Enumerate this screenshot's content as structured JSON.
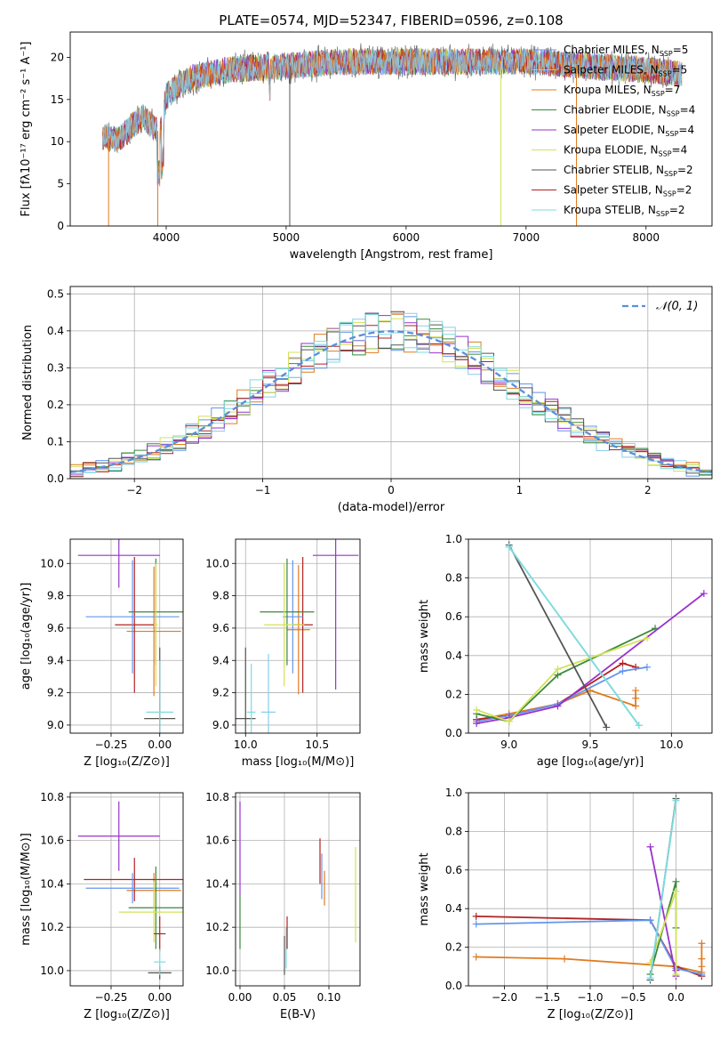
{
  "legend_entries": [
    {
      "label": "Chabrier MILES, N",
      "sub": "SSP",
      "suffix": "=5",
      "color": "#6495ed"
    },
    {
      "label": "Salpeter MILES, N",
      "sub": "SSP",
      "suffix": "=5",
      "color": "#87ceeb"
    },
    {
      "label": "Kroupa MILES, N",
      "sub": "SSP",
      "suffix": "=7",
      "color": "#e07b20"
    },
    {
      "label": "Chabrier ELODIE, N",
      "sub": "SSP",
      "suffix": "=4",
      "color": "#3a8a3a"
    },
    {
      "label": "Salpeter ELODIE, N",
      "sub": "SSP",
      "suffix": "=4",
      "color": "#9932cc"
    },
    {
      "label": "Kroupa ELODIE, N",
      "sub": "SSP",
      "suffix": "=4",
      "color": "#d4e157"
    },
    {
      "label": "Chabrier STELIB, N",
      "sub": "SSP",
      "suffix": "=2",
      "color": "#555555"
    },
    {
      "label": "Salpeter STELIB, N",
      "sub": "SSP",
      "suffix": "=2",
      "color": "#b22222"
    },
    {
      "label": "Kroupa STELIB, N",
      "sub": "SSP",
      "suffix": "=2",
      "color": "#7fdbdb"
    }
  ],
  "chart_data": [
    {
      "type": "line",
      "title": "PLATE=0574, MJD=52347, FIBERID=0596, z=0.108",
      "xlabel": "wavelength [Angstrom, rest frame]",
      "ylabel": "Flux [fλ10⁻¹⁷ erg cm⁻² s⁻¹ A⁻¹]",
      "xlim": [
        3200,
        8550
      ],
      "ylim": [
        0,
        23
      ],
      "xticks": [
        "4000",
        "5000",
        "6000",
        "7000",
        "8000"
      ],
      "yticks": [
        "0",
        "5",
        "10",
        "15",
        "20"
      ],
      "spectrum_envelope": {
        "x": [
          3470,
          3600,
          3800,
          3950,
          4000,
          4200,
          4500,
          5000,
          5500,
          6000,
          6500,
          7000,
          7500,
          8000,
          8300
        ],
        "y": [
          10.5,
          10.2,
          13,
          11,
          15.5,
          17.5,
          18.5,
          19,
          19.5,
          19.5,
          19.5,
          19.5,
          19,
          18.5,
          18
        ]
      },
      "drops": [
        3520,
        3930,
        5030,
        6790,
        7420
      ]
    },
    {
      "type": "bar",
      "xlabel": "(data-model)/error",
      "ylabel": "Normed distribution",
      "xlim": [
        -2.5,
        2.5
      ],
      "ylim": [
        0,
        0.52
      ],
      "xticks": [
        "−2",
        "−1",
        "0",
        "1",
        "2"
      ],
      "yticks": [
        "0.0",
        "0.1",
        "0.2",
        "0.3",
        "0.4",
        "0.5"
      ],
      "legend": "𝒩(0, 1)",
      "bin_width": 0.1
    },
    {
      "type": "scatter",
      "xlabel": "Z [log₁₀(Z/Z⊙)]",
      "ylabel": "age  [log₁₀(age/yr)]",
      "xlim": [
        -0.46,
        0.12
      ],
      "ylim": [
        8.95,
        10.15
      ],
      "xticks": [
        "−0.25",
        "0.00"
      ],
      "yticks": [
        "9.0",
        "9.2",
        "9.4",
        "9.6",
        "9.8",
        "10.0"
      ],
      "points": [
        {
          "x": -0.03,
          "y": 9.58,
          "xerr": 0.14,
          "yerr": 0.4,
          "c": 2
        },
        {
          "x": -0.13,
          "y": 9.62,
          "xerr": 0.1,
          "yerr": 0.42,
          "c": 7
        },
        {
          "x": -0.14,
          "y": 9.67,
          "xerr": 0.24,
          "yerr": 0.35,
          "c": 0
        },
        {
          "x": -0.02,
          "y": 9.7,
          "xerr": 0.14,
          "yerr": 0.33,
          "c": 3
        },
        {
          "x": -0.21,
          "y": 10.05,
          "xerr": 0.21,
          "yerr": 0.2,
          "c": 4
        },
        {
          "x": -0.02,
          "y": 9.62,
          "xerr": 0.01,
          "yerr": 0.38,
          "c": 5
        },
        {
          "x": 0.0,
          "y": 9.04,
          "xerr": 0.08,
          "yerr": 0.44,
          "c": 6
        },
        {
          "x": 0.0,
          "y": 9.08,
          "xerr": 0.07,
          "yerr": 0.32,
          "c": 8
        }
      ]
    },
    {
      "type": "scatter",
      "xlabel": "mass [log₁₀(M/M⊙)]",
      "xlim": [
        9.93,
        10.8
      ],
      "ylim": [
        8.95,
        10.15
      ],
      "xticks": [
        "10.0",
        "10.5"
      ],
      "yticks": [
        "9.0",
        "9.2",
        "9.4",
        "9.6",
        "9.8",
        "10.0"
      ],
      "points": [
        {
          "x": 10.37,
          "y": 9.59,
          "xerr": 0.08,
          "yerr": 0.4,
          "c": 2
        },
        {
          "x": 10.4,
          "y": 9.62,
          "xerr": 0.07,
          "yerr": 0.42,
          "c": 7
        },
        {
          "x": 10.33,
          "y": 9.67,
          "xerr": 0.07,
          "yerr": 0.35,
          "c": 0
        },
        {
          "x": 10.29,
          "y": 9.7,
          "xerr": 0.19,
          "yerr": 0.33,
          "c": 3
        },
        {
          "x": 10.63,
          "y": 10.05,
          "xerr": 0.16,
          "yerr": 0.83,
          "c": 4
        },
        {
          "x": 10.27,
          "y": 9.62,
          "xerr": 0.14,
          "yerr": 0.38,
          "c": 5
        },
        {
          "x": 10.0,
          "y": 9.04,
          "xerr": 0.07,
          "yerr": 0.44,
          "c": 6
        },
        {
          "x": 10.16,
          "y": 9.08,
          "xerr": 0.05,
          "yerr": 0.36,
          "c": 1
        },
        {
          "x": 10.04,
          "y": 9.08,
          "xerr": 0.03,
          "yerr": 0.3,
          "c": 8
        }
      ]
    },
    {
      "type": "line",
      "xlabel": "age  [log₁₀(age/yr)]",
      "ylabel": "mass weight",
      "xlim": [
        8.75,
        10.25
      ],
      "ylim": [
        0,
        1
      ],
      "xticks": [
        "9.0",
        "9.5",
        "10.0"
      ],
      "yticks": [
        "0.0",
        "0.2",
        "0.4",
        "0.6",
        "0.8",
        "1.0"
      ],
      "series": [
        {
          "c": 2,
          "x": [
            8.8,
            9.0,
            9.3,
            9.5,
            9.78,
            9.78,
            9.78
          ],
          "y": [
            0.07,
            0.1,
            0.15,
            0.22,
            0.14,
            0.22,
            0.18
          ]
        },
        {
          "c": 7,
          "x": [
            8.8,
            9.0,
            9.3,
            9.7,
            9.78
          ],
          "y": [
            0.07,
            0.09,
            0.15,
            0.36,
            0.34
          ]
        },
        {
          "c": 0,
          "x": [
            8.8,
            9.0,
            9.3,
            9.7,
            9.85
          ],
          "y": [
            0.06,
            0.09,
            0.15,
            0.32,
            0.34
          ]
        },
        {
          "c": 3,
          "x": [
            8.8,
            9.0,
            9.3,
            9.9
          ],
          "y": [
            0.1,
            0.06,
            0.3,
            0.54
          ]
        },
        {
          "c": 4,
          "x": [
            8.8,
            9.0,
            9.3,
            10.2
          ],
          "y": [
            0.05,
            0.08,
            0.14,
            0.72
          ]
        },
        {
          "c": 5,
          "x": [
            8.8,
            9.0,
            9.3,
            9.85
          ],
          "y": [
            0.12,
            0.06,
            0.33,
            0.49
          ]
        },
        {
          "c": 6,
          "x": [
            9.0,
            9.6
          ],
          "y": [
            0.97,
            0.03
          ]
        },
        {
          "c": 1,
          "x": [
            9.0,
            9.8
          ],
          "y": [
            0.96,
            0.04
          ]
        },
        {
          "c": 8,
          "x": [
            9.0,
            9.8
          ],
          "y": [
            0.96,
            0.04
          ]
        }
      ]
    },
    {
      "type": "scatter",
      "xlabel": "Z [log₁₀(Z/Z⊙)]",
      "ylabel": "mass [log₁₀(M/M⊙)]",
      "xlim": [
        -0.46,
        0.12
      ],
      "ylim": [
        9.93,
        10.82
      ],
      "xticks": [
        "−0.25",
        "0.00"
      ],
      "yticks": [
        "10.0",
        "10.2",
        "10.4",
        "10.6",
        "10.8"
      ],
      "points": [
        {
          "x": -0.03,
          "y": 10.37,
          "xerr": 0.14,
          "yerr": 0.08,
          "c": 2
        },
        {
          "x": -0.13,
          "y": 10.42,
          "xerr": 0.26,
          "yerr": 0.1,
          "c": 7
        },
        {
          "x": -0.14,
          "y": 10.38,
          "xerr": 0.24,
          "yerr": 0.07,
          "c": 0
        },
        {
          "x": -0.02,
          "y": 10.29,
          "xerr": 0.14,
          "yerr": 0.19,
          "c": 3
        },
        {
          "x": -0.21,
          "y": 10.62,
          "xerr": 0.21,
          "yerr": 0.16,
          "c": 4
        },
        {
          "x": -0.03,
          "y": 10.27,
          "xerr": 0.18,
          "yerr": 0.14,
          "c": 5
        },
        {
          "x": 0.0,
          "y": 9.99,
          "xerr": 0.06,
          "yerr": 0.03,
          "c": 6
        },
        {
          "x": 0.0,
          "y": 10.17,
          "xerr": 0.03,
          "yerr": 0.08,
          "c": 7
        },
        {
          "x": 0.0,
          "y": 10.04,
          "xerr": 0.03,
          "yerr": 0.06,
          "c": 8
        }
      ]
    },
    {
      "type": "scatter",
      "xlabel": "E(B-V)",
      "xlim": [
        -0.005,
        0.135
      ],
      "ylim": [
        9.93,
        10.82
      ],
      "xticks": [
        "0.00",
        "0.05",
        "0.10"
      ],
      "yticks": [
        "10.0",
        "10.2",
        "10.4",
        "10.6",
        "10.8"
      ],
      "vbars": [
        {
          "x": 0.0,
          "y0": 10.35,
          "y1": 10.78,
          "c": 4
        },
        {
          "x": 0.0,
          "y0": 10.1,
          "y1": 10.35,
          "c": 3
        },
        {
          "x": 0.05,
          "y0": 9.98,
          "y1": 10.16,
          "c": 6
        },
        {
          "x": 0.052,
          "y0": 10.01,
          "y1": 10.2,
          "c": 8
        },
        {
          "x": 0.053,
          "y0": 10.1,
          "y1": 10.25,
          "c": 7
        },
        {
          "x": 0.09,
          "y0": 10.4,
          "y1": 10.61,
          "c": 7
        },
        {
          "x": 0.092,
          "y0": 10.33,
          "y1": 10.54,
          "c": 0
        },
        {
          "x": 0.095,
          "y0": 10.3,
          "y1": 10.46,
          "c": 2
        },
        {
          "x": 0.13,
          "y0": 10.13,
          "y1": 10.57,
          "c": 5
        }
      ]
    },
    {
      "type": "line",
      "xlabel": "Z [log₁₀(Z/Z⊙)]",
      "ylabel": "mass weight",
      "xlim": [
        -2.42,
        0.42
      ],
      "ylim": [
        0,
        1
      ],
      "xticks": [
        "−2.0",
        "−1.5",
        "−1.0",
        "−0.5",
        "0.0"
      ],
      "yticks": [
        "0.0",
        "0.2",
        "0.4",
        "0.6",
        "0.8",
        "1.0"
      ],
      "series": [
        {
          "c": 2,
          "x": [
            -2.33,
            -1.3,
            0.0,
            0.3,
            0.3,
            0.3,
            0.3
          ],
          "y": [
            0.15,
            0.14,
            0.1,
            0.07,
            0.22,
            0.14,
            0.1
          ]
        },
        {
          "c": 7,
          "x": [
            -2.33,
            -0.3,
            0.0,
            0.3
          ],
          "y": [
            0.36,
            0.34,
            0.1,
            0.05
          ]
        },
        {
          "c": 0,
          "x": [
            -2.33,
            -0.3,
            0.0,
            0.3
          ],
          "y": [
            0.32,
            0.34,
            0.09,
            0.06
          ]
        },
        {
          "c": 3,
          "x": [
            -0.3,
            0.0,
            0.0
          ],
          "y": [
            0.06,
            0.54,
            0.3
          ]
        },
        {
          "c": 4,
          "x": [
            -0.3,
            0.0,
            0.0
          ],
          "y": [
            0.72,
            0.05,
            0.08
          ]
        },
        {
          "c": 5,
          "x": [
            -0.3,
            0.0,
            0.0
          ],
          "y": [
            0.12,
            0.49,
            0.06
          ]
        },
        {
          "c": 6,
          "x": [
            -0.3,
            0.0
          ],
          "y": [
            0.03,
            0.97
          ]
        },
        {
          "c": 1,
          "x": [
            -0.3,
            0.0
          ],
          "y": [
            0.04,
            0.96
          ]
        },
        {
          "c": 8,
          "x": [
            -0.3,
            0.0
          ],
          "y": [
            0.04,
            0.96
          ]
        }
      ]
    }
  ]
}
